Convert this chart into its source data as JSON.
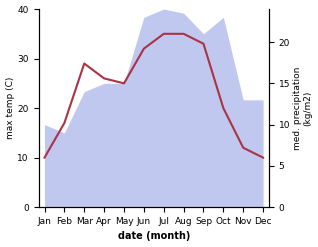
{
  "months": [
    "Jan",
    "Feb",
    "Mar",
    "Apr",
    "May",
    "Jun",
    "Jul",
    "Aug",
    "Sep",
    "Oct",
    "Nov",
    "Dec"
  ],
  "temp": [
    10,
    17,
    29,
    26,
    25,
    32,
    35,
    35,
    33,
    20,
    12,
    10
  ],
  "precip": [
    10,
    9,
    14,
    15,
    15,
    23,
    24,
    23.5,
    21,
    23,
    13,
    13
  ],
  "temp_color": "#aa3344",
  "precip_fill_color": "#c0c8f0",
  "xlabel": "date (month)",
  "ylabel_left": "max temp (C)",
  "ylabel_right": "med. precipitation\n(kg/m2)",
  "ylim_left": [
    0,
    40
  ],
  "ylim_right": [
    0,
    24
  ],
  "yticks_left": [
    0,
    10,
    20,
    30,
    40
  ],
  "yticks_right": [
    0,
    5,
    10,
    15,
    20
  ],
  "bg_color": "#ffffff",
  "linewidth": 1.5,
  "xlabel_fontsize": 7,
  "label_fontsize": 6.5,
  "tick_fontsize": 6.5
}
